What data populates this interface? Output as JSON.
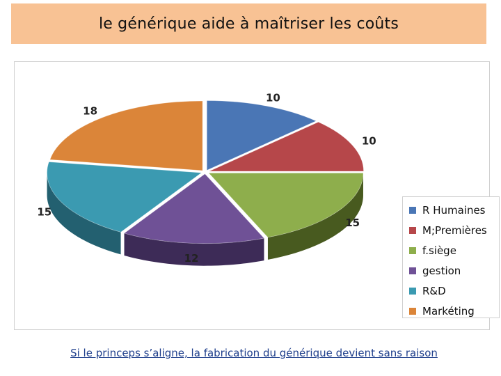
{
  "slide": {
    "title": "le générique aide à maîtriser les coûts",
    "footer": "Si le princeps s’aligne,  la fabrication du générique devient sans raison"
  },
  "chart_data": {
    "type": "pie",
    "style": "3d",
    "categories": [
      "R Humaines",
      "M;Premières",
      "f.siège",
      "gestion",
      "R&D",
      "Markéting"
    ],
    "values": [
      10,
      10,
      15,
      12,
      15,
      18
    ],
    "data_labels": [
      "10",
      "10",
      "15",
      "12",
      "15",
      "18"
    ],
    "colors": [
      "#4a76b5",
      "#b6474a",
      "#8eae4c",
      "#6f5196",
      "#3b9ab1",
      "#db8539"
    ],
    "side_colors": [
      "#2e4a74",
      "#742c2f",
      "#485a1f",
      "#3d2b57",
      "#236070",
      "#8f5524"
    ],
    "legend_position": "right"
  }
}
